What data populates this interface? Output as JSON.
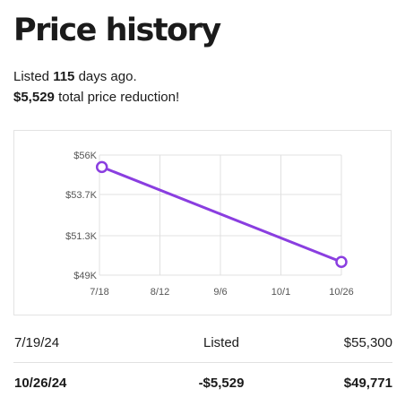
{
  "header": {
    "title": "Price history",
    "listed_prefix": "Listed",
    "listed_days": "115",
    "listed_suffix": "days ago.",
    "reduction_amount": "$5,529",
    "reduction_suffix": "total price reduction!"
  },
  "chart_data": {
    "type": "line",
    "x_ticks": [
      "7/18",
      "8/12",
      "9/6",
      "10/1",
      "10/26"
    ],
    "y_ticks": [
      "$56K",
      "$53.7K",
      "$51.3K",
      "$49K"
    ],
    "ylim": [
      49000,
      56000
    ],
    "xlim": [
      "7/18",
      "10/26"
    ],
    "grid": true,
    "line_color": "#8a3ee0",
    "series": [
      {
        "points": [
          {
            "x": "7/19",
            "y": 55300
          },
          {
            "x": "10/26",
            "y": 49771
          }
        ]
      }
    ]
  },
  "history": [
    {
      "date": "7/19/24",
      "event": "Listed",
      "price": "$55,300"
    },
    {
      "date": "10/26/24",
      "event": "-$5,529",
      "price": "$49,771"
    }
  ]
}
